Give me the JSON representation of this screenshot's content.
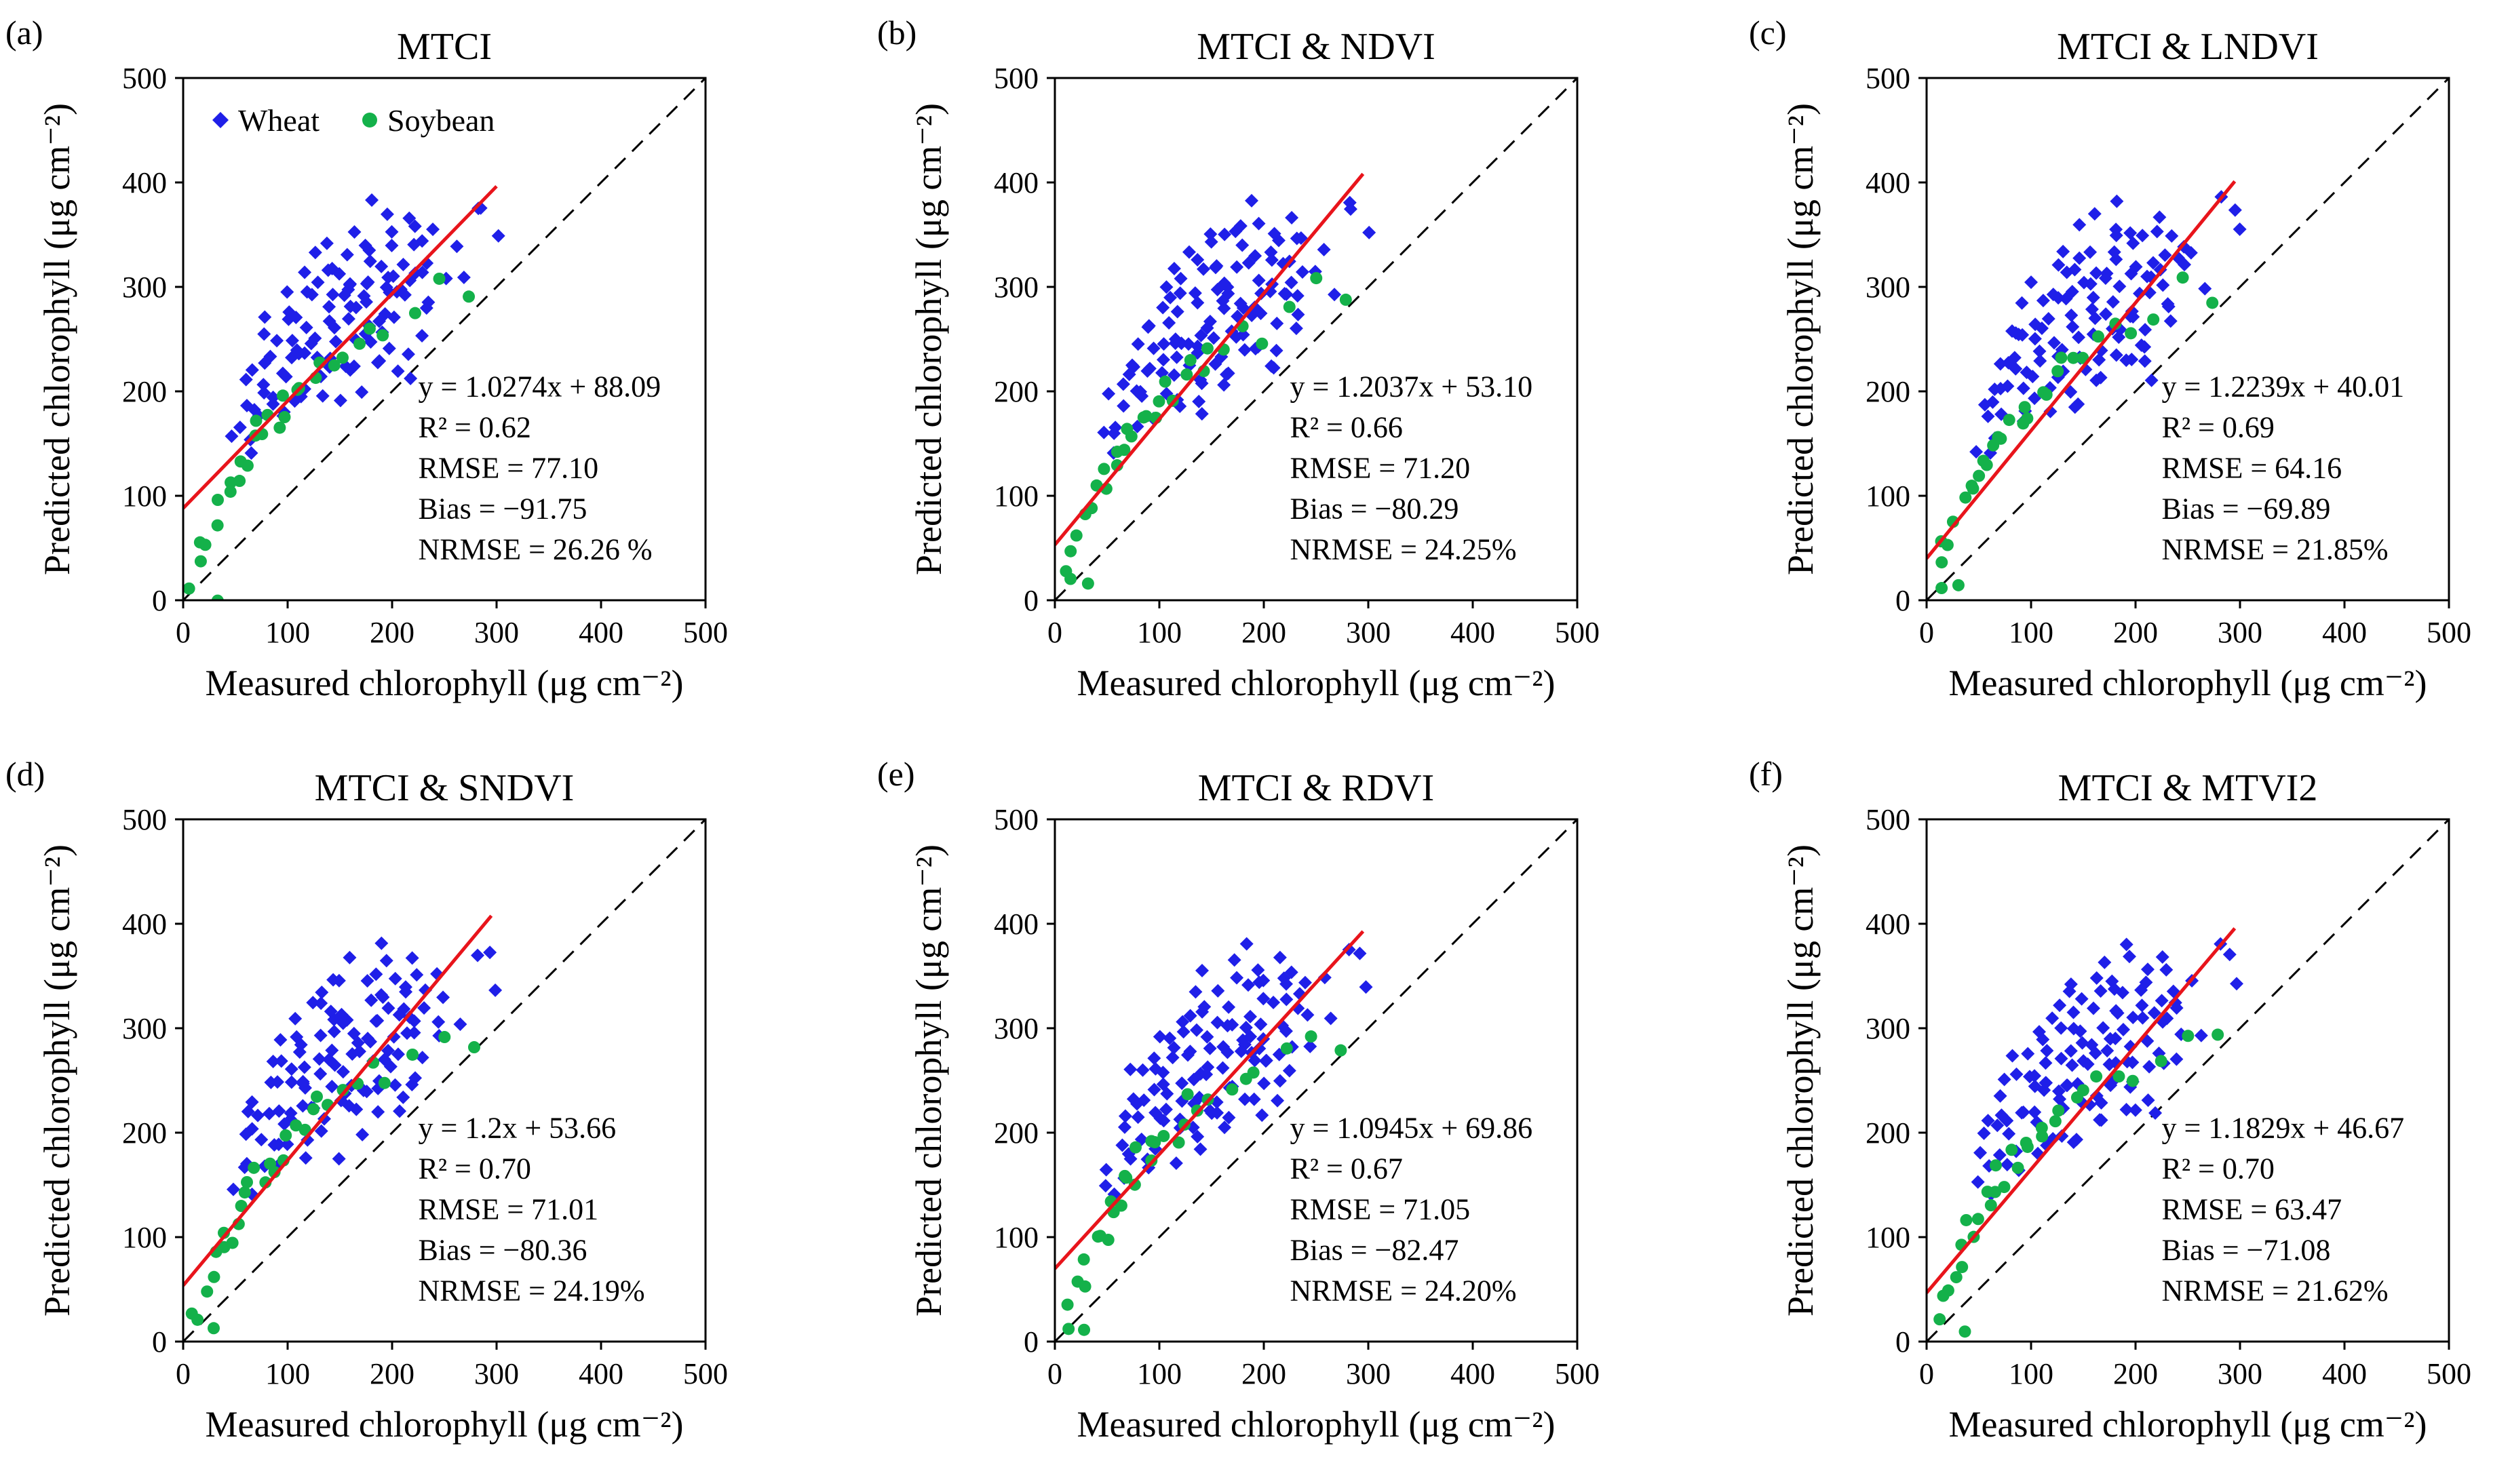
{
  "colors": {
    "wheat": "#1f1fe8",
    "soybean": "#14b14a",
    "regression": "#e8141b",
    "axis": "#000000"
  },
  "chart_data": [
    {
      "type": "scatter",
      "letter": "(a)",
      "title": "MTCI",
      "xlabel": "Measured chlorophyll (μg cm⁻²)",
      "ylabel": "Predicted chlorophyll (μg cm⁻²)",
      "xlim": [
        0,
        500
      ],
      "ylim": [
        0,
        500
      ],
      "ticks": [
        0,
        100,
        200,
        300,
        400,
        500
      ],
      "legend": [
        "Wheat",
        "Soybean"
      ],
      "regression": {
        "slope": 1.0274,
        "intercept": 88.09,
        "x_range": [
          0,
          300
        ]
      },
      "stats": [
        "y = 1.0274x + 88.09",
        "R² = 0.62",
        "RMSE = 77.10",
        "Bias = −91.75",
        "NRMSE = 26.26 %"
      ]
    },
    {
      "type": "scatter",
      "letter": "(b)",
      "title": "MTCI & NDVI",
      "xlabel": "Measured chlorophyll (μg cm⁻²)",
      "ylabel": "Predicted chlorophyll (μg cm⁻²)",
      "xlim": [
        0,
        500
      ],
      "ylim": [
        0,
        500
      ],
      "ticks": [
        0,
        100,
        200,
        300,
        400,
        500
      ],
      "regression": {
        "slope": 1.2037,
        "intercept": 53.1,
        "x_range": [
          0,
          295
        ]
      },
      "stats": [
        "y = 1.2037x + 53.10",
        "R² = 0.66",
        "RMSE = 71.20",
        "Bias = −80.29",
        "NRMSE = 24.25%"
      ]
    },
    {
      "type": "scatter",
      "letter": "(c)",
      "title": "MTCI & LNDVI",
      "xlabel": "Measured chlorophyll (μg cm⁻²)",
      "ylabel": "Predicted chlorophyll (μg cm⁻²)",
      "xlim": [
        0,
        500
      ],
      "ylim": [
        0,
        500
      ],
      "ticks": [
        0,
        100,
        200,
        300,
        400,
        500
      ],
      "regression": {
        "slope": 1.2239,
        "intercept": 40.01,
        "x_range": [
          0,
          295
        ]
      },
      "stats": [
        "y = 1.2239x + 40.01",
        "R² = 0.69",
        "RMSE = 64.16",
        "Bias = −69.89",
        "NRMSE = 21.85%"
      ]
    },
    {
      "type": "scatter",
      "letter": "(d)",
      "title": "MTCI & SNDVI",
      "xlabel": "Measured chlorophyll (μg cm⁻²)",
      "ylabel": "Predicted chlorophyll (μg cm⁻²)",
      "xlim": [
        0,
        500
      ],
      "ylim": [
        0,
        500
      ],
      "ticks": [
        0,
        100,
        200,
        300,
        400,
        500
      ],
      "regression": {
        "slope": 1.2,
        "intercept": 53.66,
        "x_range": [
          0,
          295
        ]
      },
      "stats": [
        "y = 1.2x + 53.66",
        "R² = 0.70",
        "RMSE = 71.01",
        "Bias = −80.36",
        "NRMSE = 24.19%"
      ]
    },
    {
      "type": "scatter",
      "letter": "(e)",
      "title": "MTCI & RDVI",
      "xlabel": "Measured chlorophyll (μg cm⁻²)",
      "ylabel": "Predicted chlorophyll (μg cm⁻²)",
      "xlim": [
        0,
        500
      ],
      "ylim": [
        0,
        500
      ],
      "ticks": [
        0,
        100,
        200,
        300,
        400,
        500
      ],
      "regression": {
        "slope": 1.0945,
        "intercept": 69.86,
        "x_range": [
          0,
          295
        ]
      },
      "stats": [
        "y = 1.0945x + 69.86",
        "R² = 0.67",
        "RMSE = 71.05",
        "Bias = −82.47",
        "NRMSE = 24.20%"
      ]
    },
    {
      "type": "scatter",
      "letter": "(f)",
      "title": "MTCI & MTVI2",
      "xlabel": "Measured chlorophyll (μg cm⁻²)",
      "ylabel": "Predicted chlorophyll (μg cm⁻²)",
      "xlim": [
        0,
        500
      ],
      "ylim": [
        0,
        500
      ],
      "ticks": [
        0,
        100,
        200,
        300,
        400,
        500
      ],
      "regression": {
        "slope": 1.1829,
        "intercept": 46.67,
        "x_range": [
          0,
          295
        ]
      },
      "stats": [
        "y = 1.1829x + 46.67",
        "R² = 0.70",
        "RMSE = 63.47",
        "Bias = −71.08",
        "NRMSE = 21.62%"
      ]
    }
  ],
  "scatter_points": {
    "soybean": [
      [
        10,
        20
      ],
      [
        12,
        35
      ],
      [
        18,
        52
      ],
      [
        25,
        60
      ],
      [
        30,
        78
      ],
      [
        32,
        8
      ],
      [
        38,
        95
      ],
      [
        42,
        110
      ],
      [
        48,
        102
      ],
      [
        52,
        120
      ],
      [
        55,
        140
      ],
      [
        60,
        132
      ],
      [
        65,
        150
      ],
      [
        70,
        165
      ],
      [
        75,
        155
      ],
      [
        80,
        178
      ],
      [
        88,
        170
      ],
      [
        95,
        190
      ],
      [
        100,
        182
      ],
      [
        108,
        205
      ],
      [
        115,
        198
      ],
      [
        122,
        215
      ],
      [
        130,
        230
      ],
      [
        140,
        225
      ],
      [
        150,
        240
      ],
      [
        165,
        248
      ],
      [
        180,
        260
      ],
      [
        195,
        250
      ],
      [
        220,
        275
      ],
      [
        250,
        300
      ],
      [
        275,
        285
      ]
    ],
    "wheat": [
      [
        50,
        150
      ],
      [
        55,
        170
      ],
      [
        58,
        190
      ],
      [
        62,
        160
      ],
      [
        65,
        210
      ],
      [
        68,
        185
      ],
      [
        70,
        230
      ],
      [
        72,
        200
      ],
      [
        75,
        175
      ],
      [
        78,
        250
      ],
      [
        80,
        215
      ],
      [
        82,
        195
      ],
      [
        85,
        265
      ],
      [
        88,
        230
      ],
      [
        90,
        185
      ],
      [
        92,
        245
      ],
      [
        95,
        210
      ],
      [
        98,
        280
      ],
      [
        100,
        225
      ],
      [
        100,
        190
      ],
      [
        102,
        255
      ],
      [
        105,
        300
      ],
      [
        106,
        240
      ],
      [
        108,
        205
      ],
      [
        110,
        270
      ],
      [
        112,
        230
      ],
      [
        115,
        290
      ],
      [
        116,
        200
      ],
      [
        118,
        255
      ],
      [
        120,
        315
      ],
      [
        121,
        240
      ],
      [
        123,
        270
      ],
      [
        125,
        215
      ],
      [
        127,
        300
      ],
      [
        128,
        250
      ],
      [
        130,
        330
      ],
      [
        131,
        230
      ],
      [
        133,
        280
      ],
      [
        135,
        260
      ],
      [
        136,
        205
      ],
      [
        138,
        310
      ],
      [
        140,
        240
      ],
      [
        141,
        290
      ],
      [
        143,
        350
      ],
      [
        145,
        270
      ],
      [
        146,
        220
      ],
      [
        148,
        320
      ],
      [
        150,
        255
      ],
      [
        151,
        300
      ],
      [
        153,
        230
      ],
      [
        155,
        280
      ],
      [
        156,
        340
      ],
      [
        158,
        260
      ],
      [
        160,
        310
      ],
      [
        161,
        240
      ],
      [
        163,
        290
      ],
      [
        165,
        270
      ],
      [
        166,
        360
      ],
      [
        168,
        225
      ],
      [
        170,
        300
      ],
      [
        171,
        250
      ],
      [
        173,
        330
      ],
      [
        175,
        280
      ],
      [
        176,
        245
      ],
      [
        178,
        310
      ],
      [
        180,
        270
      ],
      [
        181,
        350
      ],
      [
        183,
        295
      ],
      [
        185,
        260
      ],
      [
        186,
        380
      ],
      [
        188,
        320
      ],
      [
        190,
        240
      ],
      [
        191,
        300
      ],
      [
        193,
        340
      ],
      [
        195,
        270
      ],
      [
        196,
        310
      ],
      [
        198,
        285
      ],
      [
        200,
        360
      ],
      [
        201,
        250
      ],
      [
        203,
        320
      ],
      [
        205,
        295
      ],
      [
        206,
        345
      ],
      [
        208,
        270
      ],
      [
        210,
        330
      ],
      [
        211,
        305
      ],
      [
        213,
        240
      ],
      [
        215,
        350
      ],
      [
        216,
        285
      ],
      [
        218,
        320
      ],
      [
        220,
        300
      ],
      [
        222,
        365
      ],
      [
        225,
        335
      ],
      [
        228,
        310
      ],
      [
        230,
        355
      ],
      [
        235,
        325
      ],
      [
        238,
        290
      ],
      [
        240,
        345
      ],
      [
        245,
        315
      ],
      [
        255,
        340
      ],
      [
        265,
        300
      ],
      [
        280,
        380
      ],
      [
        290,
        365
      ],
      [
        295,
        345
      ],
      [
        60,
        140
      ],
      [
        73,
        220
      ],
      [
        96,
        260
      ],
      [
        113,
        180
      ],
      [
        139,
        195
      ],
      [
        162,
        215
      ],
      [
        187,
        230
      ],
      [
        212,
        220
      ],
      [
        233,
        275
      ],
      [
        109,
        245
      ],
      [
        134,
        320
      ],
      [
        157,
        295
      ],
      [
        179,
        345
      ],
      [
        204,
        225
      ],
      [
        227,
        260
      ],
      [
        144,
        185
      ],
      [
        167,
        205
      ],
      [
        192,
        270
      ],
      [
        117,
        285
      ],
      [
        92,
        170
      ]
    ]
  }
}
